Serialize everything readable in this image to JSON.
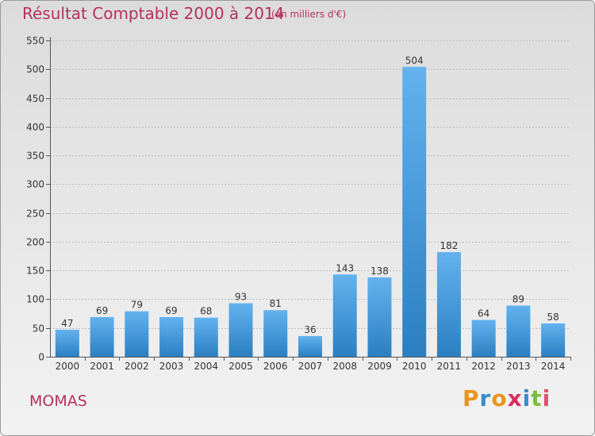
{
  "header": {
    "title": "Résultat Comptable 2000 à 2014",
    "subtitle": "(en milliers d'€)"
  },
  "footer": {
    "commune": "MOMAS",
    "logo_text": "Proxiti"
  },
  "colors": {
    "accent": "#b5305d",
    "bar_light": "#63b2ee",
    "bar_dark": "#2b7fc1",
    "logo_letters": [
      "#e8941d",
      "#3a8cc6",
      "#e8941d",
      "#d6305e",
      "#3a8cc6",
      "#7bbf3a",
      "#e0506f"
    ]
  },
  "chart_data": {
    "type": "bar",
    "categories": [
      "2000",
      "2001",
      "2002",
      "2003",
      "2004",
      "2005",
      "2006",
      "2007",
      "2008",
      "2009",
      "2010",
      "2011",
      "2012",
      "2013",
      "2014"
    ],
    "values": [
      47,
      69,
      79,
      69,
      68,
      93,
      81,
      36,
      143,
      138,
      504,
      182,
      64,
      89,
      58
    ],
    "ylim": [
      0,
      550
    ],
    "yticks": [
      0,
      50,
      100,
      150,
      200,
      250,
      300,
      350,
      400,
      450,
      500,
      550
    ],
    "grid": true,
    "data_labels": true
  }
}
